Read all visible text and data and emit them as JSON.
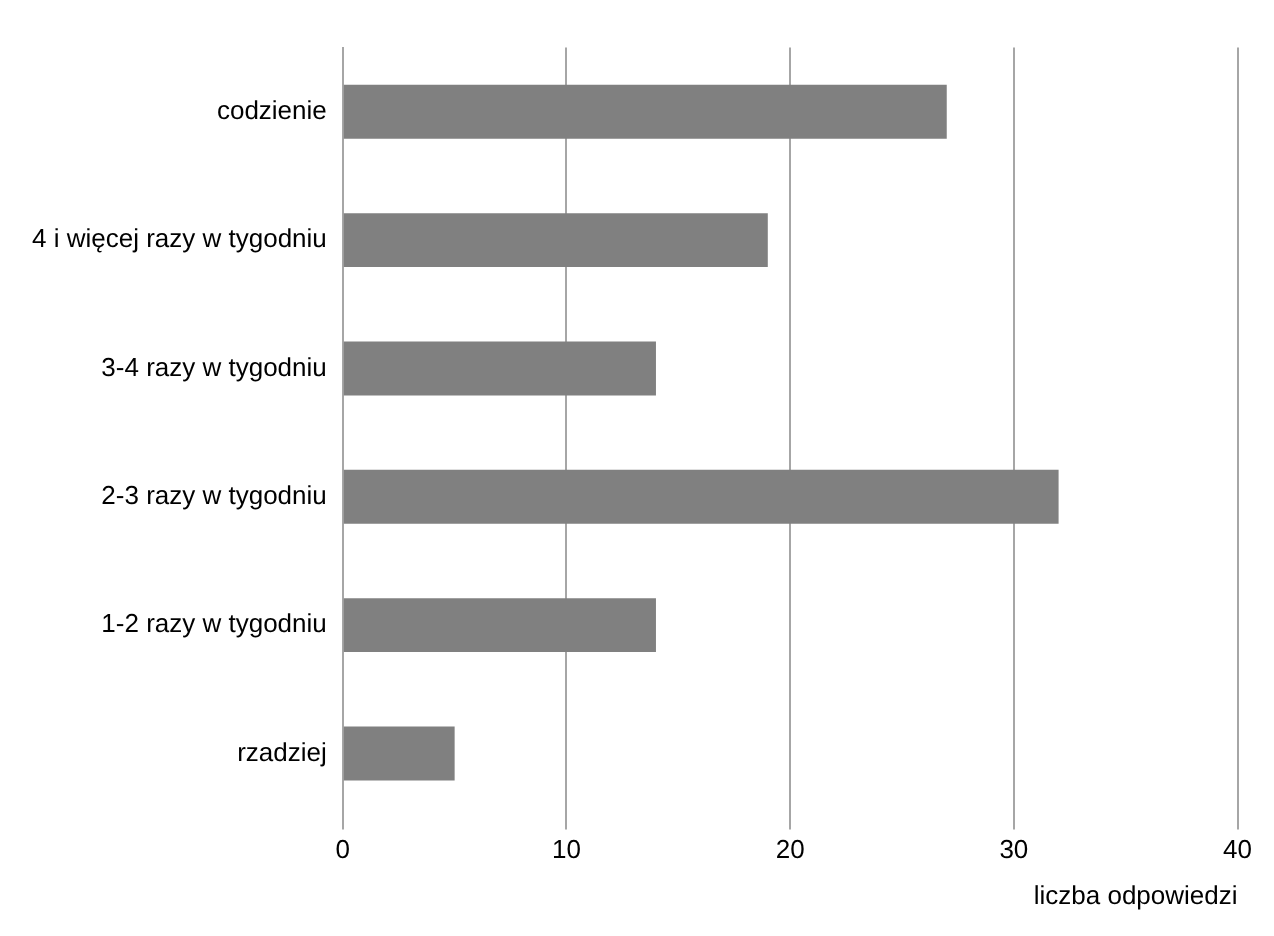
{
  "chart_data": {
    "type": "bar",
    "orientation": "horizontal",
    "xlabel": "liczba odpowiedzi",
    "categories": [
      "codzienie",
      "4 i więcej razy w tygodniu",
      "3-4 razy w tygodniu",
      "2-3 razy w tygodniu",
      "1-2 razy w tygodniu",
      "rzadziej"
    ],
    "values": [
      27,
      19,
      14,
      32,
      14,
      5
    ],
    "color": "#808080",
    "xlim": [
      0,
      40
    ],
    "xticks": [
      0,
      10,
      20,
      30,
      40
    ],
    "grid": "x",
    "legend": false
  }
}
